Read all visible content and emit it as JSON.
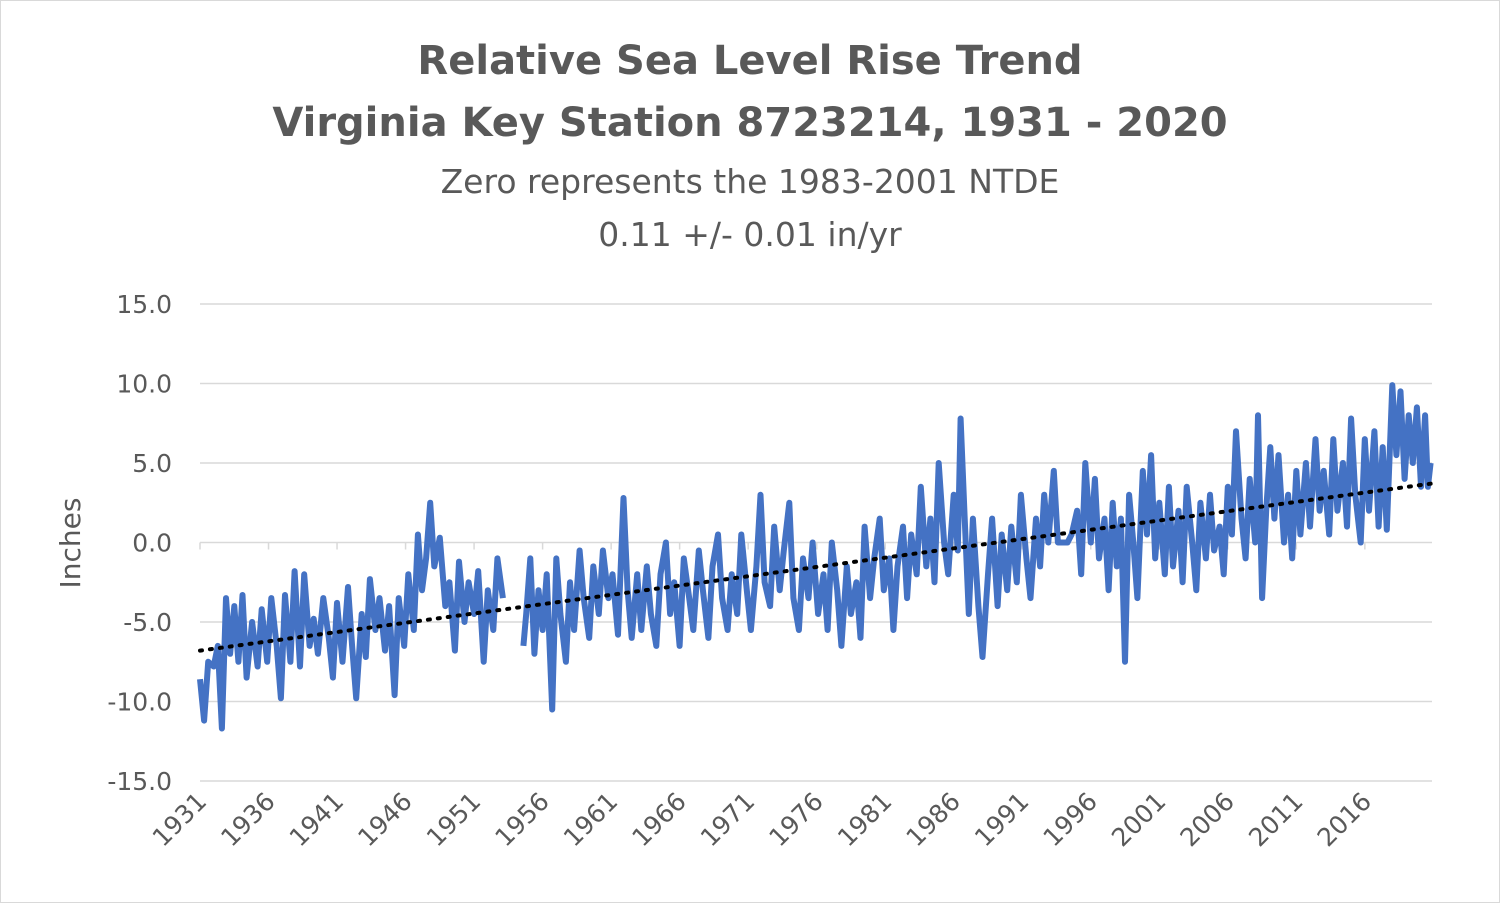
{
  "chart_data": {
    "type": "line",
    "title": "Relative Sea Level Rise Trend",
    "title_line2": "Virginia Key Station 8723214, 1931 - 2020",
    "subtitle": "Zero represents the 1983-2001 NTDE",
    "subtitle_line2": "0.11 +/- 0.01 in/yr",
    "xlabel": "",
    "ylabel": "Inches",
    "ylim": [
      -15,
      15
    ],
    "yticks": [
      15,
      10,
      5,
      0,
      -5,
      -10,
      -15
    ],
    "ytick_labels": [
      "15.0",
      "10.0",
      "5.0",
      "0.0",
      "-5.0",
      "-10.0",
      "-15.0"
    ],
    "xlim": [
      1931,
      2020.9
    ],
    "xticks": [
      1931,
      1936,
      1941,
      1946,
      1951,
      1956,
      1961,
      1966,
      1971,
      1976,
      1981,
      1986,
      1991,
      1996,
      2001,
      2006,
      2011,
      2016
    ],
    "grid": true,
    "legend": "none",
    "colors": {
      "series": "#4472C4",
      "trend": "#000000",
      "grid": "#d9d9d9",
      "text": "#595959"
    },
    "series": [
      {
        "kind": "monthly",
        "start_year": 1931,
        "gap": [
          1953.2,
          1954.5
        ],
        "points": [
          [
            1931.0,
            -8.6
          ],
          [
            1931.3,
            -11.2
          ],
          [
            1931.6,
            -7.5
          ],
          [
            1932.0,
            -7.8
          ],
          [
            1932.3,
            -6.5
          ],
          [
            1932.6,
            -11.7
          ],
          [
            1932.9,
            -3.5
          ],
          [
            1933.2,
            -7.0
          ],
          [
            1933.5,
            -4.0
          ],
          [
            1933.8,
            -7.5
          ],
          [
            1934.1,
            -3.3
          ],
          [
            1934.4,
            -8.5
          ],
          [
            1934.8,
            -5.0
          ],
          [
            1935.2,
            -7.8
          ],
          [
            1935.5,
            -4.2
          ],
          [
            1935.9,
            -7.5
          ],
          [
            1936.2,
            -3.5
          ],
          [
            1936.6,
            -6.5
          ],
          [
            1936.9,
            -9.8
          ],
          [
            1937.2,
            -3.3
          ],
          [
            1937.6,
            -7.5
          ],
          [
            1937.9,
            -1.8
          ],
          [
            1938.3,
            -7.8
          ],
          [
            1938.6,
            -2.0
          ],
          [
            1939.0,
            -6.5
          ],
          [
            1939.3,
            -4.8
          ],
          [
            1939.6,
            -7.0
          ],
          [
            1940.0,
            -3.5
          ],
          [
            1940.4,
            -6.0
          ],
          [
            1940.7,
            -8.5
          ],
          [
            1941.0,
            -3.8
          ],
          [
            1941.4,
            -7.5
          ],
          [
            1941.8,
            -2.8
          ],
          [
            1942.1,
            -6.5
          ],
          [
            1942.4,
            -9.8
          ],
          [
            1942.8,
            -4.5
          ],
          [
            1943.1,
            -7.2
          ],
          [
            1943.4,
            -2.3
          ],
          [
            1943.8,
            -5.5
          ],
          [
            1944.1,
            -3.5
          ],
          [
            1944.5,
            -6.8
          ],
          [
            1944.8,
            -4.0
          ],
          [
            1945.2,
            -9.6
          ],
          [
            1945.5,
            -3.5
          ],
          [
            1945.9,
            -6.5
          ],
          [
            1946.2,
            -2.0
          ],
          [
            1946.6,
            -5.5
          ],
          [
            1946.9,
            0.5
          ],
          [
            1947.2,
            -3.0
          ],
          [
            1947.5,
            -1.0
          ],
          [
            1947.8,
            2.5
          ],
          [
            1948.1,
            -1.5
          ],
          [
            1948.5,
            0.3
          ],
          [
            1948.9,
            -4.0
          ],
          [
            1949.2,
            -2.5
          ],
          [
            1949.6,
            -6.8
          ],
          [
            1949.9,
            -1.2
          ],
          [
            1950.3,
            -5.0
          ],
          [
            1950.6,
            -2.5
          ],
          [
            1951.0,
            -4.5
          ],
          [
            1951.3,
            -1.8
          ],
          [
            1951.7,
            -7.5
          ],
          [
            1952.0,
            -3.0
          ],
          [
            1952.4,
            -5.5
          ],
          [
            1952.7,
            -1.0
          ],
          [
            1953.1,
            -3.5
          ],
          [
            1954.6,
            -6.5
          ],
          [
            1954.8,
            -4.5
          ],
          [
            1955.1,
            -1.0
          ],
          [
            1955.4,
            -7.0
          ],
          [
            1955.7,
            -3.0
          ],
          [
            1956.0,
            -5.5
          ],
          [
            1956.3,
            -2.0
          ],
          [
            1956.7,
            -10.5
          ],
          [
            1957.0,
            -1.0
          ],
          [
            1957.3,
            -4.5
          ],
          [
            1957.7,
            -7.5
          ],
          [
            1958.0,
            -2.5
          ],
          [
            1958.3,
            -5.5
          ],
          [
            1958.7,
            -0.5
          ],
          [
            1959.0,
            -3.5
          ],
          [
            1959.4,
            -6.0
          ],
          [
            1959.7,
            -1.5
          ],
          [
            1960.1,
            -4.5
          ],
          [
            1960.4,
            -0.5
          ],
          [
            1960.8,
            -3.5
          ],
          [
            1961.1,
            -2.0
          ],
          [
            1961.5,
            -5.8
          ],
          [
            1961.9,
            2.8
          ],
          [
            1962.2,
            -3.0
          ],
          [
            1962.5,
            -6.0
          ],
          [
            1962.9,
            -2.0
          ],
          [
            1963.2,
            -5.5
          ],
          [
            1963.6,
            -1.5
          ],
          [
            1963.9,
            -4.5
          ],
          [
            1964.3,
            -6.5
          ],
          [
            1964.6,
            -2.0
          ],
          [
            1965.0,
            0.0
          ],
          [
            1965.3,
            -4.5
          ],
          [
            1965.6,
            -2.5
          ],
          [
            1966.0,
            -6.5
          ],
          [
            1966.3,
            -1.0
          ],
          [
            1966.7,
            -3.5
          ],
          [
            1967.0,
            -5.5
          ],
          [
            1967.4,
            -0.5
          ],
          [
            1967.7,
            -3.0
          ],
          [
            1968.1,
            -6.0
          ],
          [
            1968.4,
            -1.5
          ],
          [
            1968.8,
            0.5
          ],
          [
            1969.1,
            -3.5
          ],
          [
            1969.5,
            -5.5
          ],
          [
            1969.8,
            -2.0
          ],
          [
            1970.2,
            -4.5
          ],
          [
            1970.5,
            0.5
          ],
          [
            1970.9,
            -3.0
          ],
          [
            1971.2,
            -5.5
          ],
          [
            1971.6,
            -1.5
          ],
          [
            1971.9,
            3.0
          ],
          [
            1972.2,
            -2.5
          ],
          [
            1972.6,
            -4.0
          ],
          [
            1972.9,
            1.0
          ],
          [
            1973.3,
            -3.0
          ],
          [
            1973.6,
            -0.5
          ],
          [
            1974.0,
            2.5
          ],
          [
            1974.3,
            -3.5
          ],
          [
            1974.7,
            -5.5
          ],
          [
            1975.0,
            -1.0
          ],
          [
            1975.4,
            -3.5
          ],
          [
            1975.7,
            0.0
          ],
          [
            1976.1,
            -4.5
          ],
          [
            1976.5,
            -2.0
          ],
          [
            1976.8,
            -5.5
          ],
          [
            1977.1,
            0.0
          ],
          [
            1977.5,
            -3.0
          ],
          [
            1977.8,
            -6.5
          ],
          [
            1978.2,
            -1.5
          ],
          [
            1978.5,
            -4.5
          ],
          [
            1978.9,
            -2.5
          ],
          [
            1979.2,
            -6.0
          ],
          [
            1979.5,
            1.0
          ],
          [
            1979.9,
            -3.5
          ],
          [
            1980.2,
            -1.0
          ],
          [
            1980.6,
            1.5
          ],
          [
            1980.9,
            -3.0
          ],
          [
            1981.3,
            -1.0
          ],
          [
            1981.6,
            -5.5
          ],
          [
            1981.9,
            -1.5
          ],
          [
            1982.3,
            1.0
          ],
          [
            1982.6,
            -3.5
          ],
          [
            1982.9,
            0.5
          ],
          [
            1983.3,
            -2.0
          ],
          [
            1983.6,
            3.5
          ],
          [
            1984.0,
            -1.5
          ],
          [
            1984.3,
            1.5
          ],
          [
            1984.6,
            -2.5
          ],
          [
            1984.9,
            5.0
          ],
          [
            1985.3,
            0.0
          ],
          [
            1985.6,
            -2.0
          ],
          [
            1986.0,
            3.0
          ],
          [
            1986.3,
            -0.5
          ],
          [
            1986.5,
            7.8
          ],
          [
            1986.8,
            1.5
          ],
          [
            1987.1,
            -4.5
          ],
          [
            1987.4,
            1.5
          ],
          [
            1987.8,
            -4.0
          ],
          [
            1988.1,
            -7.2
          ],
          [
            1988.5,
            -2.0
          ],
          [
            1988.8,
            1.5
          ],
          [
            1989.2,
            -4.0
          ],
          [
            1989.5,
            0.5
          ],
          [
            1989.9,
            -3.0
          ],
          [
            1990.2,
            1.0
          ],
          [
            1990.6,
            -2.5
          ],
          [
            1990.9,
            3.0
          ],
          [
            1991.3,
            -1.0
          ],
          [
            1991.6,
            -3.5
          ],
          [
            1992.0,
            1.5
          ],
          [
            1992.3,
            -1.5
          ],
          [
            1992.6,
            3.0
          ],
          [
            1992.9,
            0.0
          ],
          [
            1993.3,
            4.5
          ],
          [
            1993.6,
            0.0
          ],
          [
            1993.9,
            0.0
          ],
          [
            1994.3,
            0.0
          ],
          [
            1994.6,
            0.5
          ],
          [
            1995.0,
            2.0
          ],
          [
            1995.3,
            -2.0
          ],
          [
            1995.6,
            5.0
          ],
          [
            1996.0,
            0.0
          ],
          [
            1996.3,
            4.0
          ],
          [
            1996.6,
            -1.0
          ],
          [
            1997.0,
            1.5
          ],
          [
            1997.3,
            -3.0
          ],
          [
            1997.6,
            2.5
          ],
          [
            1997.9,
            -1.5
          ],
          [
            1998.2,
            1.5
          ],
          [
            1998.5,
            -7.5
          ],
          [
            1998.8,
            3.0
          ],
          [
            1999.1,
            0.0
          ],
          [
            1999.4,
            -3.5
          ],
          [
            1999.8,
            4.5
          ],
          [
            2000.1,
            0.5
          ],
          [
            2000.4,
            5.5
          ],
          [
            2000.7,
            -1.0
          ],
          [
            2001.0,
            2.5
          ],
          [
            2001.4,
            -2.0
          ],
          [
            2001.7,
            3.5
          ],
          [
            2002.0,
            -1.5
          ],
          [
            2002.4,
            2.0
          ],
          [
            2002.7,
            -2.5
          ],
          [
            2003.0,
            3.5
          ],
          [
            2003.4,
            0.0
          ],
          [
            2003.7,
            -3.0
          ],
          [
            2004.0,
            2.5
          ],
          [
            2004.4,
            -1.0
          ],
          [
            2004.7,
            3.0
          ],
          [
            2005.0,
            -0.5
          ],
          [
            2005.4,
            1.0
          ],
          [
            2005.7,
            -2.0
          ],
          [
            2006.0,
            3.5
          ],
          [
            2006.3,
            0.5
          ],
          [
            2006.6,
            7.0
          ],
          [
            2007.0,
            1.5
          ],
          [
            2007.3,
            -1.0
          ],
          [
            2007.6,
            4.0
          ],
          [
            2008.0,
            0.0
          ],
          [
            2008.2,
            8.0
          ],
          [
            2008.5,
            -3.5
          ],
          [
            2008.8,
            2.0
          ],
          [
            2009.1,
            6.0
          ],
          [
            2009.4,
            1.5
          ],
          [
            2009.7,
            5.5
          ],
          [
            2010.1,
            0.0
          ],
          [
            2010.4,
            3.0
          ],
          [
            2010.7,
            -1.0
          ],
          [
            2011.0,
            4.5
          ],
          [
            2011.3,
            0.5
          ],
          [
            2011.7,
            5.0
          ],
          [
            2012.0,
            1.0
          ],
          [
            2012.4,
            6.5
          ],
          [
            2012.7,
            2.0
          ],
          [
            2013.0,
            4.5
          ],
          [
            2013.4,
            0.5
          ],
          [
            2013.7,
            6.5
          ],
          [
            2014.0,
            2.0
          ],
          [
            2014.4,
            5.0
          ],
          [
            2014.7,
            1.0
          ],
          [
            2015.0,
            7.8
          ],
          [
            2015.3,
            3.0
          ],
          [
            2015.7,
            0.0
          ],
          [
            2016.0,
            6.5
          ],
          [
            2016.3,
            2.0
          ],
          [
            2016.7,
            7.0
          ],
          [
            2017.0,
            1.0
          ],
          [
            2017.3,
            6.0
          ],
          [
            2017.6,
            0.8
          ],
          [
            2018.0,
            9.9
          ],
          [
            2018.3,
            5.5
          ],
          [
            2018.6,
            9.5
          ],
          [
            2018.9,
            4.0
          ],
          [
            2019.2,
            8.0
          ],
          [
            2019.5,
            5.0
          ],
          [
            2019.8,
            8.5
          ],
          [
            2020.1,
            3.5
          ],
          [
            2020.4,
            8.0
          ],
          [
            2020.6,
            3.5
          ],
          [
            2020.8,
            5.0
          ]
        ]
      },
      {
        "kind": "trend",
        "x": [
          1931.0,
          2020.8
        ],
        "y": [
          -6.8,
          3.7
        ]
      }
    ]
  }
}
